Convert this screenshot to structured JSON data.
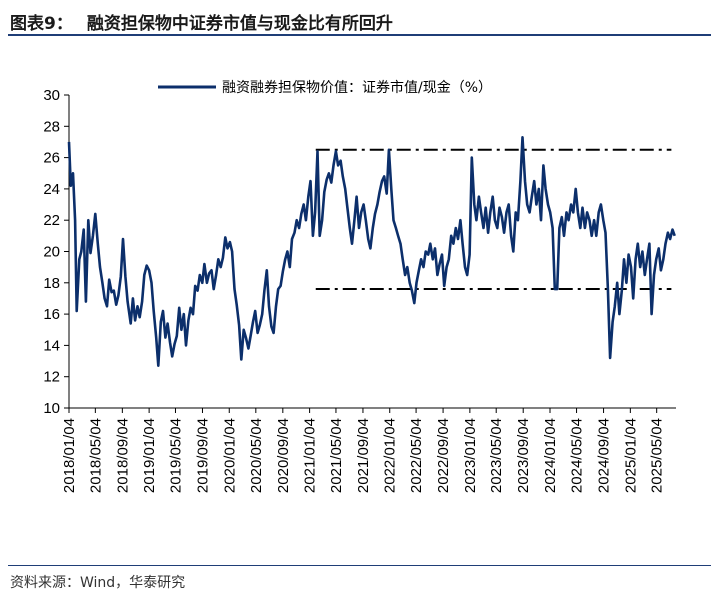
{
  "header": {
    "figure_label": "图表9：",
    "title": "融资担保物中证券市值与现金比有所回升"
  },
  "source": "资料来源：Wind，华泰研究",
  "colors": {
    "line": "#0c2f6b",
    "reference": "#000000",
    "frame": "#1f3e77"
  },
  "chart_data": {
    "type": "line",
    "title": "",
    "xlabel": "",
    "ylabel": "",
    "ylim": [
      10,
      30
    ],
    "yticks": [
      10,
      12,
      14,
      16,
      18,
      20,
      22,
      24,
      26,
      28,
      30
    ],
    "xlim": [
      "2018-01-04",
      "2025-07-31"
    ],
    "xticks": [
      "2018/01/04",
      "2018/05/04",
      "2018/09/04",
      "2019/01/04",
      "2019/05/04",
      "2019/09/04",
      "2020/01/04",
      "2020/05/04",
      "2020/09/04",
      "2021/01/04",
      "2021/05/04",
      "2021/09/04",
      "2022/01/04",
      "2022/05/04",
      "2022/09/04",
      "2023/01/04",
      "2023/05/04",
      "2023/09/04",
      "2024/01/04",
      "2024/05/04",
      "2024/09/04",
      "2025/01/04",
      "2025/05/04"
    ],
    "grid": false,
    "legend": "top-center",
    "series": [
      {
        "name": "融资融券担保物价值：证券市值/现金（%）",
        "points": [
          [
            "2018-01-04",
            27.0
          ],
          [
            "2018-01-12",
            24.2
          ],
          [
            "2018-01-22",
            25.0
          ],
          [
            "2018-02-01",
            22.0
          ],
          [
            "2018-02-08",
            16.2
          ],
          [
            "2018-02-20",
            19.5
          ],
          [
            "2018-03-01",
            20.0
          ],
          [
            "2018-03-12",
            21.4
          ],
          [
            "2018-03-22",
            16.8
          ],
          [
            "2018-04-02",
            22.0
          ],
          [
            "2018-04-12",
            19.9
          ],
          [
            "2018-04-23",
            21.0
          ],
          [
            "2018-05-04",
            22.4
          ],
          [
            "2018-05-15",
            20.5
          ],
          [
            "2018-05-25",
            19.0
          ],
          [
            "2018-06-05",
            18.0
          ],
          [
            "2018-06-15",
            17.0
          ],
          [
            "2018-06-26",
            16.5
          ],
          [
            "2018-07-06",
            18.2
          ],
          [
            "2018-07-17",
            17.4
          ],
          [
            "2018-07-27",
            17.5
          ],
          [
            "2018-08-07",
            16.6
          ],
          [
            "2018-08-17",
            17.2
          ],
          [
            "2018-08-28",
            18.4
          ],
          [
            "2018-09-07",
            20.8
          ],
          [
            "2018-09-18",
            18.4
          ],
          [
            "2018-09-28",
            16.8
          ],
          [
            "2018-10-12",
            15.4
          ],
          [
            "2018-10-22",
            17.0
          ],
          [
            "2018-11-01",
            15.6
          ],
          [
            "2018-11-12",
            16.5
          ],
          [
            "2018-11-22",
            15.8
          ],
          [
            "2018-12-03",
            16.8
          ],
          [
            "2018-12-13",
            18.5
          ],
          [
            "2018-12-24",
            19.1
          ],
          [
            "2019-01-04",
            18.8
          ],
          [
            "2019-01-15",
            18.0
          ],
          [
            "2019-01-25",
            16.2
          ],
          [
            "2019-02-05",
            14.5
          ],
          [
            "2019-02-15",
            12.7
          ],
          [
            "2019-02-26",
            15.5
          ],
          [
            "2019-03-08",
            16.2
          ],
          [
            "2019-03-19",
            14.5
          ],
          [
            "2019-03-29",
            15.4
          ],
          [
            "2019-04-09",
            14.2
          ],
          [
            "2019-04-19",
            13.3
          ],
          [
            "2019-04-30",
            14.1
          ],
          [
            "2019-05-10",
            14.6
          ],
          [
            "2019-05-21",
            16.4
          ],
          [
            "2019-05-31",
            15.0
          ],
          [
            "2019-06-11",
            16.0
          ],
          [
            "2019-06-21",
            14.0
          ],
          [
            "2019-07-02",
            15.6
          ],
          [
            "2019-07-12",
            16.4
          ],
          [
            "2019-07-23",
            16.0
          ],
          [
            "2019-08-02",
            17.8
          ],
          [
            "2019-08-13",
            17.5
          ],
          [
            "2019-08-23",
            18.5
          ],
          [
            "2019-09-03",
            18.0
          ],
          [
            "2019-09-13",
            19.2
          ],
          [
            "2019-09-24",
            18.0
          ],
          [
            "2019-10-04",
            18.6
          ],
          [
            "2019-10-15",
            18.8
          ],
          [
            "2019-10-25",
            17.6
          ],
          [
            "2019-11-05",
            18.5
          ],
          [
            "2019-11-15",
            19.5
          ],
          [
            "2019-11-26",
            19.0
          ],
          [
            "2019-12-06",
            19.6
          ],
          [
            "2019-12-17",
            20.9
          ],
          [
            "2019-12-27",
            20.2
          ],
          [
            "2020-01-07",
            20.6
          ],
          [
            "2020-01-17",
            20.0
          ],
          [
            "2020-01-28",
            17.6
          ],
          [
            "2020-02-07",
            16.6
          ],
          [
            "2020-02-18",
            15.3
          ],
          [
            "2020-02-28",
            13.1
          ],
          [
            "2020-03-10",
            15.0
          ],
          [
            "2020-03-20",
            14.5
          ],
          [
            "2020-03-31",
            13.8
          ],
          [
            "2020-04-10",
            14.6
          ],
          [
            "2020-04-21",
            15.5
          ],
          [
            "2020-05-01",
            16.2
          ],
          [
            "2020-05-12",
            14.8
          ],
          [
            "2020-05-22",
            15.3
          ],
          [
            "2020-06-02",
            16.0
          ],
          [
            "2020-06-12",
            17.5
          ],
          [
            "2020-06-23",
            18.8
          ],
          [
            "2020-07-03",
            16.5
          ],
          [
            "2020-07-14",
            15.2
          ],
          [
            "2020-07-24",
            14.8
          ],
          [
            "2020-08-04",
            16.5
          ],
          [
            "2020-08-14",
            17.6
          ],
          [
            "2020-08-25",
            17.8
          ],
          [
            "2020-09-04",
            18.7
          ],
          [
            "2020-09-15",
            19.5
          ],
          [
            "2020-09-25",
            20.0
          ],
          [
            "2020-10-06",
            19.0
          ],
          [
            "2020-10-16",
            20.8
          ],
          [
            "2020-10-27",
            21.2
          ],
          [
            "2020-11-06",
            22.0
          ],
          [
            "2020-11-17",
            21.5
          ],
          [
            "2020-11-27",
            22.4
          ],
          [
            "2020-12-08",
            23.0
          ],
          [
            "2020-12-18",
            22.0
          ],
          [
            "2020-12-29",
            23.5
          ],
          [
            "2021-01-08",
            24.5
          ],
          [
            "2021-01-19",
            21.0
          ],
          [
            "2021-01-29",
            22.5
          ],
          [
            "2021-02-09",
            26.4
          ],
          [
            "2021-02-19",
            21.0
          ],
          [
            "2021-03-02",
            22.0
          ],
          [
            "2021-03-12",
            23.8
          ],
          [
            "2021-03-23",
            24.6
          ],
          [
            "2021-04-02",
            25.0
          ],
          [
            "2021-04-13",
            24.4
          ],
          [
            "2021-04-23",
            25.5
          ],
          [
            "2021-05-04",
            26.4
          ],
          [
            "2021-05-14",
            25.5
          ],
          [
            "2021-05-25",
            25.8
          ],
          [
            "2021-06-04",
            24.8
          ],
          [
            "2021-06-15",
            24.0
          ],
          [
            "2021-06-25",
            22.8
          ],
          [
            "2021-07-06",
            21.5
          ],
          [
            "2021-07-16",
            20.5
          ],
          [
            "2021-07-27",
            22.0
          ],
          [
            "2021-08-06",
            23.5
          ],
          [
            "2021-08-17",
            21.5
          ],
          [
            "2021-08-27",
            22.5
          ],
          [
            "2021-09-07",
            23.0
          ],
          [
            "2021-09-17",
            22.0
          ],
          [
            "2021-09-28",
            20.8
          ],
          [
            "2021-10-08",
            20.2
          ],
          [
            "2021-10-19",
            21.5
          ],
          [
            "2021-10-29",
            22.4
          ],
          [
            "2021-11-09",
            23.0
          ],
          [
            "2021-11-19",
            23.8
          ],
          [
            "2021-11-30",
            24.5
          ],
          [
            "2021-12-10",
            24.8
          ],
          [
            "2021-12-21",
            23.7
          ],
          [
            "2021-12-31",
            26.5
          ],
          [
            "2022-01-11",
            24.0
          ],
          [
            "2022-01-21",
            22.0
          ],
          [
            "2022-02-01",
            21.5
          ],
          [
            "2022-02-11",
            21.0
          ],
          [
            "2022-02-22",
            20.5
          ],
          [
            "2022-03-04",
            19.5
          ],
          [
            "2022-03-15",
            18.5
          ],
          [
            "2022-03-25",
            19.0
          ],
          [
            "2022-04-05",
            18.0
          ],
          [
            "2022-04-15",
            17.5
          ],
          [
            "2022-04-26",
            16.7
          ],
          [
            "2022-05-06",
            18.0
          ],
          [
            "2022-05-17",
            18.8
          ],
          [
            "2022-05-27",
            19.5
          ],
          [
            "2022-06-07",
            19.0
          ],
          [
            "2022-06-17",
            20.0
          ],
          [
            "2022-06-28",
            19.8
          ],
          [
            "2022-07-08",
            20.5
          ],
          [
            "2022-07-19",
            19.5
          ],
          [
            "2022-07-29",
            20.2
          ],
          [
            "2022-08-09",
            18.5
          ],
          [
            "2022-08-19",
            19.2
          ],
          [
            "2022-08-30",
            19.8
          ],
          [
            "2022-09-09",
            17.8
          ],
          [
            "2022-09-20",
            19.0
          ],
          [
            "2022-09-30",
            19.5
          ],
          [
            "2022-10-11",
            21.0
          ],
          [
            "2022-10-21",
            20.5
          ],
          [
            "2022-11-01",
            21.5
          ],
          [
            "2022-11-11",
            20.8
          ],
          [
            "2022-11-22",
            22.0
          ],
          [
            "2022-12-02",
            20.5
          ],
          [
            "2022-12-13",
            19.0
          ],
          [
            "2022-12-23",
            18.5
          ],
          [
            "2023-01-03",
            19.8
          ],
          [
            "2023-01-13",
            26.0
          ],
          [
            "2023-01-24",
            23.0
          ],
          [
            "2023-02-03",
            22.0
          ],
          [
            "2023-02-14",
            23.5
          ],
          [
            "2023-02-24",
            22.5
          ],
          [
            "2023-03-07",
            21.5
          ],
          [
            "2023-03-17",
            22.8
          ],
          [
            "2023-03-28",
            21.2
          ],
          [
            "2023-04-07",
            22.5
          ],
          [
            "2023-04-18",
            23.5
          ],
          [
            "2023-04-28",
            22.0
          ],
          [
            "2023-05-09",
            21.5
          ],
          [
            "2023-05-19",
            22.8
          ],
          [
            "2023-05-30",
            22.2
          ],
          [
            "2023-06-09",
            21.2
          ],
          [
            "2023-06-20",
            22.5
          ],
          [
            "2023-06-30",
            23.0
          ],
          [
            "2023-07-11",
            21.0
          ],
          [
            "2023-07-21",
            20.0
          ],
          [
            "2023-08-01",
            22.5
          ],
          [
            "2023-08-11",
            22.0
          ],
          [
            "2023-08-22",
            24.5
          ],
          [
            "2023-09-01",
            27.3
          ],
          [
            "2023-09-12",
            24.5
          ],
          [
            "2023-09-22",
            23.0
          ],
          [
            "2023-10-03",
            22.5
          ],
          [
            "2023-10-13",
            23.5
          ],
          [
            "2023-10-24",
            24.5
          ],
          [
            "2023-11-03",
            23.0
          ],
          [
            "2023-11-14",
            24.0
          ],
          [
            "2023-11-24",
            22.0
          ],
          [
            "2023-12-05",
            25.5
          ],
          [
            "2023-12-15",
            24.0
          ],
          [
            "2023-12-26",
            23.0
          ],
          [
            "2024-01-05",
            22.5
          ],
          [
            "2024-01-16",
            21.5
          ],
          [
            "2024-01-26",
            17.6
          ],
          [
            "2024-02-06",
            17.6
          ],
          [
            "2024-02-16",
            21.5
          ],
          [
            "2024-02-27",
            22.2
          ],
          [
            "2024-03-08",
            21.0
          ],
          [
            "2024-03-19",
            22.5
          ],
          [
            "2024-03-29",
            22.0
          ],
          [
            "2024-04-09",
            23.0
          ],
          [
            "2024-04-19",
            22.5
          ],
          [
            "2024-04-30",
            24.0
          ],
          [
            "2024-05-10",
            22.5
          ],
          [
            "2024-05-21",
            21.5
          ],
          [
            "2024-05-31",
            22.8
          ],
          [
            "2024-06-11",
            21.5
          ],
          [
            "2024-06-21",
            22.5
          ],
          [
            "2024-07-02",
            22.0
          ],
          [
            "2024-07-12",
            21.0
          ],
          [
            "2024-07-23",
            22.0
          ],
          [
            "2024-08-02",
            21.0
          ],
          [
            "2024-08-13",
            22.5
          ],
          [
            "2024-08-23",
            23.0
          ],
          [
            "2024-09-03",
            22.0
          ],
          [
            "2024-09-13",
            21.2
          ],
          [
            "2024-09-24",
            17.6
          ],
          [
            "2024-10-04",
            13.2
          ],
          [
            "2024-10-15",
            15.5
          ],
          [
            "2024-10-25",
            16.5
          ],
          [
            "2024-11-05",
            18.0
          ],
          [
            "2024-11-15",
            16.0
          ],
          [
            "2024-11-26",
            17.5
          ],
          [
            "2024-12-06",
            19.5
          ],
          [
            "2024-12-17",
            18.0
          ],
          [
            "2024-12-27",
            19.8
          ],
          [
            "2025-01-07",
            19.0
          ],
          [
            "2025-01-17",
            17.0
          ],
          [
            "2025-01-28",
            19.5
          ],
          [
            "2025-02-07",
            20.5
          ],
          [
            "2025-02-18",
            19.0
          ],
          [
            "2025-02-28",
            20.0
          ],
          [
            "2025-03-11",
            18.5
          ],
          [
            "2025-03-21",
            19.5
          ],
          [
            "2025-04-01",
            20.5
          ],
          [
            "2025-04-11",
            16.0
          ],
          [
            "2025-04-22",
            18.5
          ],
          [
            "2025-05-02",
            19.5
          ],
          [
            "2025-05-13",
            20.2
          ],
          [
            "2025-05-23",
            18.8
          ],
          [
            "2025-06-03",
            19.5
          ],
          [
            "2025-06-13",
            20.5
          ],
          [
            "2025-06-24",
            21.2
          ],
          [
            "2025-07-04",
            20.8
          ],
          [
            "2025-07-15",
            21.4
          ],
          [
            "2025-07-25",
            21.0
          ]
        ]
      }
    ],
    "reference_lines": [
      {
        "from": "2021-02-01",
        "to": "2025-07-10",
        "y": 26.5,
        "style": "dash-dot"
      },
      {
        "from": "2021-02-01",
        "to": "2025-07-10",
        "y": 17.6,
        "style": "dash-dot"
      }
    ]
  }
}
